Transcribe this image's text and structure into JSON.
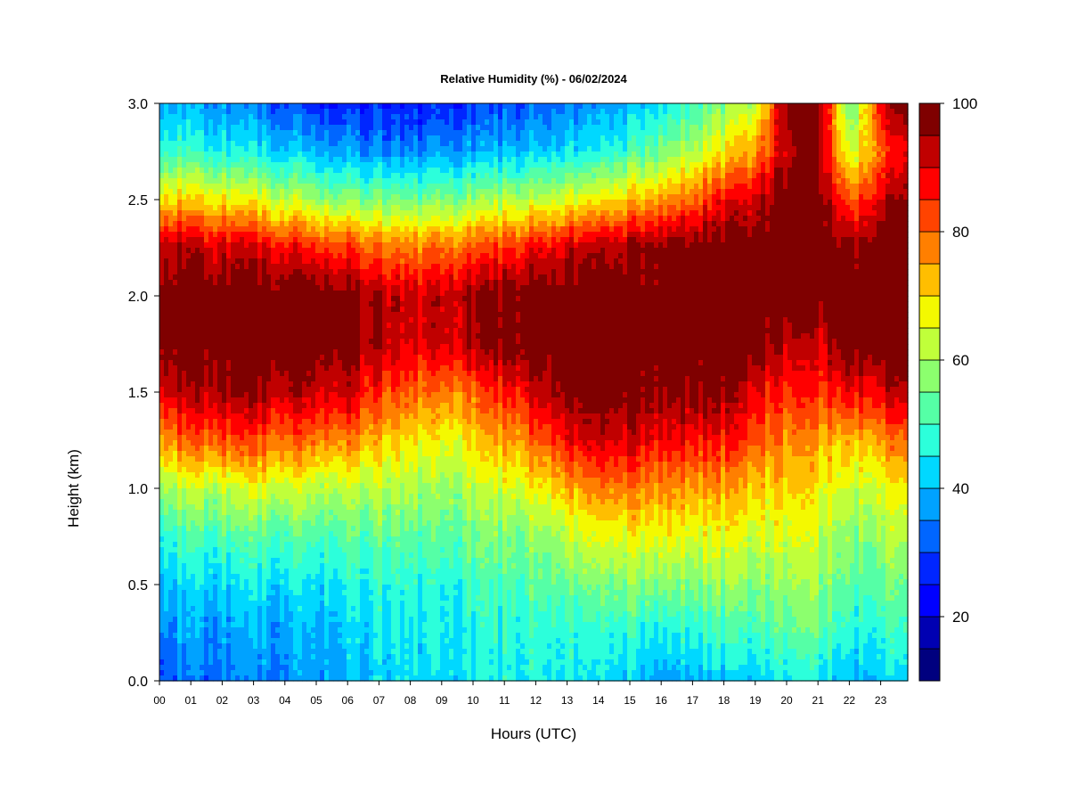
{
  "chart_data": {
    "type": "heatmap",
    "title": "Relative Humidity (%) - 06/02/2024",
    "xlabel": "Hours (UTC)",
    "ylabel": "Height (km)",
    "x_ticks": [
      "00",
      "01",
      "02",
      "03",
      "04",
      "05",
      "06",
      "07",
      "08",
      "09",
      "10",
      "11",
      "12",
      "13",
      "14",
      "15",
      "16",
      "17",
      "18",
      "19",
      "20",
      "21",
      "22",
      "23"
    ],
    "y_ticks": [
      "0.0",
      "0.5",
      "1.0",
      "1.5",
      "2.0",
      "2.5",
      "3.0"
    ],
    "xlim": [
      0,
      24
    ],
    "ylim": [
      0.0,
      3.0
    ],
    "colorbar": {
      "ticks": [
        "20",
        "40",
        "60",
        "80",
        "100"
      ],
      "range": [
        10,
        100
      ],
      "step": 5,
      "colors": [
        "#00007f",
        "#0000b2",
        "#0000ff",
        "#0026ff",
        "#0066ff",
        "#00a2ff",
        "#00d8ff",
        "#2cffdb",
        "#55ffa6",
        "#8cff6e",
        "#c0ff3a",
        "#f4f900",
        "#ffbe00",
        "#ff7f00",
        "#ff4300",
        "#ff0000",
        "#c00000",
        "#7f0000"
      ]
    },
    "profile_hours": [
      0,
      1,
      2,
      3,
      4,
      5,
      6,
      7,
      8,
      9,
      10,
      11,
      12,
      13,
      14,
      15,
      16,
      17,
      18,
      19,
      20,
      21,
      22,
      23,
      24
    ],
    "profile_heights_km": [
      0.0,
      0.25,
      0.5,
      0.75,
      1.0,
      1.25,
      1.5,
      1.75,
      2.0,
      2.25,
      2.5,
      2.75,
      3.0
    ],
    "profiles_rh": [
      [
        33,
        37,
        42,
        50,
        60,
        78,
        92,
        100,
        100,
        95,
        72,
        50,
        40
      ],
      [
        33,
        37,
        42,
        50,
        62,
        80,
        93,
        100,
        100,
        93,
        70,
        48,
        38
      ],
      [
        34,
        37,
        43,
        51,
        63,
        82,
        95,
        100,
        100,
        92,
        68,
        46,
        36
      ],
      [
        34,
        38,
        43,
        52,
        64,
        82,
        96,
        100,
        100,
        90,
        66,
        44,
        33
      ],
      [
        35,
        38,
        44,
        52,
        64,
        80,
        94,
        100,
        100,
        88,
        63,
        42,
        30
      ],
      [
        38,
        40,
        44,
        52,
        63,
        79,
        93,
        100,
        100,
        86,
        60,
        40,
        28
      ],
      [
        40,
        42,
        46,
        53,
        63,
        78,
        92,
        99,
        98,
        84,
        58,
        38,
        27
      ],
      [
        42,
        44,
        47,
        53,
        62,
        72,
        84,
        94,
        94,
        80,
        56,
        36,
        26
      ],
      [
        43,
        45,
        48,
        53,
        60,
        69,
        80,
        90,
        92,
        78,
        55,
        35,
        25
      ],
      [
        43,
        44,
        46,
        52,
        58,
        66,
        77,
        90,
        92,
        78,
        56,
        36,
        26
      ],
      [
        45,
        46,
        50,
        55,
        62,
        70,
        80,
        94,
        96,
        82,
        58,
        38,
        28
      ],
      [
        46,
        47,
        51,
        56,
        64,
        74,
        86,
        98,
        98,
        84,
        60,
        40,
        30
      ],
      [
        46,
        48,
        53,
        58,
        67,
        80,
        92,
        100,
        100,
        88,
        62,
        42,
        32
      ],
      [
        46,
        48,
        55,
        62,
        74,
        88,
        98,
        100,
        100,
        92,
        66,
        44,
        34
      ],
      [
        44,
        48,
        56,
        66,
        78,
        92,
        100,
        100,
        100,
        94,
        68,
        46,
        36
      ],
      [
        42,
        48,
        57,
        67,
        78,
        90,
        99,
        100,
        100,
        96,
        72,
        50,
        40
      ],
      [
        37,
        46,
        57,
        67,
        77,
        89,
        98,
        100,
        100,
        98,
        76,
        56,
        44
      ],
      [
        40,
        48,
        57,
        66,
        76,
        88,
        98,
        100,
        100,
        100,
        80,
        62,
        50
      ],
      [
        40,
        49,
        57,
        65,
        74,
        86,
        96,
        100,
        100,
        100,
        86,
        68,
        56
      ],
      [
        42,
        50,
        57,
        64,
        72,
        82,
        90,
        100,
        100,
        100,
        92,
        76,
        62
      ],
      [
        44,
        52,
        58,
        64,
        70,
        76,
        85,
        92,
        100,
        100,
        100,
        92,
        98
      ],
      [
        44,
        53,
        58,
        63,
        68,
        74,
        84,
        90,
        100,
        100,
        100,
        96,
        100
      ],
      [
        38,
        46,
        52,
        56,
        63,
        72,
        88,
        100,
        100,
        96,
        80,
        62,
        52
      ],
      [
        42,
        48,
        54,
        60,
        66,
        76,
        90,
        100,
        100,
        100,
        92,
        80,
        90
      ],
      [
        42,
        48,
        54,
        60,
        68,
        80,
        94,
        100,
        100,
        100,
        96,
        90,
        100
      ]
    ]
  }
}
